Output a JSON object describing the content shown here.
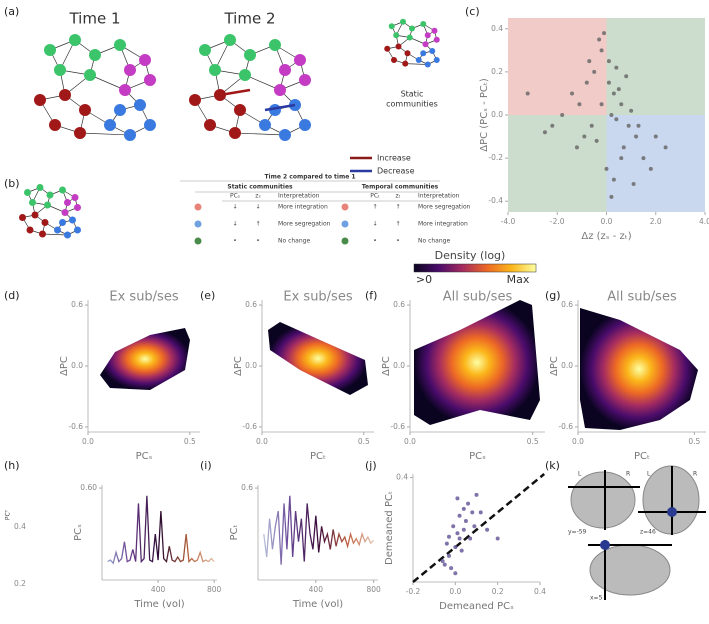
{
  "panel_labels": [
    "(a)",
    "(b)",
    "(c)",
    "(d)",
    "(e)",
    "(f)",
    "(g)",
    "(h)",
    "(i)",
    "(j)",
    "(k)"
  ],
  "panel_a": {
    "time1": "Time 1",
    "time2": "Time 2",
    "static": "Static",
    "communities": "communities",
    "increase": "Increase",
    "decrease": "Decrease",
    "increase_color": "#8b1a1a",
    "decrease_color": "#2a3aa0"
  },
  "panel_b": {
    "title": "Time 2 compared to time 1",
    "static_header": "Static communities",
    "temporal_header": "Temporal communities",
    "columns": [
      "PCₛ",
      "zₛ",
      "Interpretation",
      "PCₜ",
      "zₜ",
      "Interpretation"
    ],
    "row_colors": [
      "#e8837a",
      "#6fa0e0",
      "#4a8a4a"
    ],
    "rows": [
      [
        "↓",
        "↓",
        "More integration",
        "↑",
        "↑",
        "More segregation"
      ],
      [
        "↓",
        "↑",
        "More segregation",
        "↓",
        "↑",
        "More integration"
      ],
      [
        "•",
        "•",
        "No change",
        "•",
        "•",
        "No change"
      ]
    ]
  },
  "colorbar": {
    "title": "Density (log)",
    "min_label": ">0",
    "max_label": "Max",
    "colormap": [
      "#0a0420",
      "#4a0c6b",
      "#a52c60",
      "#ed6925",
      "#fbb61a",
      "#fcffa4"
    ]
  },
  "panel_k": {
    "labels": [
      "L",
      "R",
      "L",
      "R"
    ],
    "slices": [
      "y=-59",
      "z=46",
      "x=5"
    ]
  },
  "stray": {
    "label": "PCᵀ",
    "ticks": [
      "0.4",
      "0.2"
    ]
  },
  "chart_data": [
    {
      "type": "scatter",
      "xlabel": "Δz (zₛ - zₜ)",
      "ylabel": "ΔPC (PCₛ - PCₜ)",
      "xlim": [
        -4,
        4
      ],
      "ylim": [
        -0.45,
        0.45
      ],
      "xticks": [
        {
          "value": -4,
          "label": "-4.0"
        },
        {
          "value": -2,
          "label": "-2.0"
        },
        {
          "value": 0,
          "label": "0.0"
        },
        {
          "value": 2,
          "label": "2.0"
        },
        {
          "value": 4,
          "label": "4.0"
        }
      ],
      "yticks": [
        0.4,
        0.2,
        {
          "value": 0,
          "label": "0.0"
        },
        -0.2,
        -0.4
      ],
      "color": "#6a6a6a",
      "quadrant_colors": [
        "#f0cbc8",
        "#cdddcd",
        "#c9d8ef"
      ],
      "x": [
        -0.2,
        0.1,
        0.3,
        -0.5,
        0.6,
        -0.8,
        0.9,
        1.2,
        -1.1,
        0.4,
        -0.3,
        0.2,
        0.7,
        -0.6,
        1.5,
        -1.4,
        0.0,
        0.5,
        -0.9,
        1.0,
        -2.2,
        -2.5,
        -1.8,
        2.0,
        1.8,
        -0.1,
        0.3,
        -0.4,
        0.8,
        1.3,
        -0.7,
        0.2,
        -3.2,
        2.4,
        0.6,
        -1.2,
        0.1,
        -0.2,
        1.1,
        0.4
      ],
      "y": [
        0.3,
        0.25,
        0.1,
        0.2,
        0.05,
        0.15,
        -0.05,
        -0.1,
        0.05,
        -0.02,
        0.35,
        0.0,
        -0.15,
        -0.05,
        -0.2,
        0.1,
        -0.25,
        0.12,
        -0.1,
        0.02,
        -0.05,
        -0.08,
        0.0,
        -0.1,
        -0.25,
        0.38,
        -0.3,
        -0.12,
        0.18,
        -0.05,
        0.25,
        -0.38,
        0.1,
        -0.15,
        -0.2,
        -0.15,
        0.15,
        0.05,
        -0.32,
        0.22
      ]
    },
    {
      "type": "density",
      "title": "Ex sub/ses",
      "xlabel": "PCₛ",
      "ylabel": "ΔPC",
      "xlim": [
        0,
        0.55
      ],
      "ylim": [
        -0.65,
        0.65
      ],
      "xticks": [
        {
          "value": 0,
          "label": "0.0"
        },
        0.5
      ],
      "yticks": [
        0.6,
        {
          "value": 0,
          "label": "0.0"
        },
        -0.6
      ]
    },
    {
      "type": "density",
      "title": "Ex sub/ses",
      "xlabel": "PCₜ",
      "ylabel": "ΔPC",
      "xlim": [
        0,
        0.55
      ],
      "ylim": [
        -0.65,
        0.65
      ],
      "xticks": [
        {
          "value": 0,
          "label": "0.0"
        },
        0.5
      ],
      "yticks": [
        0.6,
        {
          "value": 0,
          "label": "0.0"
        },
        -0.6
      ]
    },
    {
      "type": "density",
      "title": "All sub/ses",
      "xlabel": "PCₛ",
      "ylabel": "ΔPC",
      "xlim": [
        0,
        0.55
      ],
      "ylim": [
        -0.65,
        0.65
      ],
      "xticks": [
        {
          "value": 0,
          "label": "0.0"
        },
        0.5
      ],
      "yticks": [
        0.6,
        {
          "value": 0,
          "label": "0.0"
        },
        -0.6
      ]
    },
    {
      "type": "density",
      "title": "All sub/ses",
      "xlabel": "PCₜ",
      "ylabel": "ΔPC",
      "xlim": [
        0,
        0.55
      ],
      "ylim": [
        -0.65,
        0.65
      ],
      "xticks": [
        {
          "value": 0,
          "label": "0.0"
        },
        0.5
      ],
      "yticks": [
        0.6,
        {
          "value": 0,
          "label": "0.0"
        },
        -0.6
      ]
    },
    {
      "type": "line",
      "xlabel": "Time (vol)",
      "ylabel": "PCₛ",
      "xlim": [
        0,
        820
      ],
      "ylim": [
        0,
        0.62
      ],
      "xticks": [
        400,
        800
      ],
      "yticks": [
        {
          "value": 0.6,
          "label": "0.60"
        }
      ],
      "colors": [
        "#9ab8dc",
        "#6a3a8a",
        "#2a0a30",
        "#b0603a",
        "#e8c8b0"
      ],
      "x": [
        40,
        60,
        80,
        100,
        120,
        140,
        160,
        180,
        200,
        220,
        240,
        260,
        280,
        300,
        320,
        340,
        360,
        380,
        400,
        420,
        440,
        460,
        480,
        500,
        520,
        540,
        560,
        580,
        600,
        620,
        640,
        660,
        680,
        700,
        720,
        740,
        760,
        780,
        800
      ],
      "values": [
        0.12,
        0.13,
        0.11,
        0.18,
        0.12,
        0.14,
        0.25,
        0.12,
        0.13,
        0.2,
        0.12,
        0.5,
        0.12,
        0.14,
        0.55,
        0.13,
        0.12,
        0.3,
        0.13,
        0.45,
        0.14,
        0.12,
        0.22,
        0.13,
        0.12,
        0.15,
        0.12,
        0.13,
        0.3,
        0.12,
        0.14,
        0.12,
        0.13,
        0.18,
        0.12,
        0.13,
        0.12,
        0.14,
        0.12
      ]
    },
    {
      "type": "line",
      "xlabel": "Time (vol)",
      "ylabel": "PCₜ",
      "xlim": [
        0,
        830
      ],
      "ylim": [
        0,
        0.62
      ],
      "xticks": [
        400,
        800
      ],
      "yticks": [
        0.6
      ],
      "colors": [
        "#c8dce8",
        "#6a4a9a",
        "#3a0a3a",
        "#c06040",
        "#ecd8c8"
      ],
      "x": [
        40,
        60,
        80,
        100,
        120,
        140,
        160,
        180,
        200,
        220,
        240,
        260,
        280,
        300,
        320,
        340,
        360,
        380,
        400,
        420,
        440,
        460,
        480,
        500,
        520,
        540,
        560,
        580,
        600,
        620,
        640,
        660,
        680,
        700,
        720,
        740,
        760,
        780,
        800
      ],
      "values": [
        0.3,
        0.15,
        0.4,
        0.2,
        0.35,
        0.45,
        0.1,
        0.5,
        0.2,
        0.55,
        0.15,
        0.45,
        0.25,
        0.4,
        0.12,
        0.5,
        0.3,
        0.2,
        0.42,
        0.18,
        0.35,
        0.25,
        0.3,
        0.2,
        0.33,
        0.22,
        0.3,
        0.25,
        0.28,
        0.22,
        0.3,
        0.24,
        0.27,
        0.23,
        0.3,
        0.25,
        0.28,
        0.24,
        0.26
      ]
    },
    {
      "type": "scatter",
      "xlabel": "Demeaned PCₛ",
      "ylabel": "Demeaned PCₜ",
      "xlim": [
        -0.2,
        0.4
      ],
      "ylim": [
        -0.2,
        0.42
      ],
      "xticks": [
        -0.2,
        {
          "value": 0,
          "label": "0.0"
        },
        0.2,
        0.4
      ],
      "yticks": [
        0.4
      ],
      "color": "#6a5a9a",
      "identity": true,
      "x": [
        -0.05,
        -0.03,
        0.0,
        0.02,
        0.04,
        -0.02,
        0.01,
        0.05,
        0.08,
        -0.04,
        0.03,
        0.06,
        0.1,
        0.12,
        -0.01,
        0.0,
        0.02,
        0.15,
        0.07,
        -0.06,
        0.04,
        0.09,
        0.2,
        0.01,
        -0.03
      ],
      "y": [
        -0.1,
        -0.05,
        0.0,
        0.05,
        0.1,
        -0.12,
        0.08,
        0.15,
        0.2,
        0.02,
        -0.02,
        0.25,
        0.3,
        0.2,
        0.12,
        -0.15,
        0.18,
        0.1,
        0.05,
        -0.08,
        0.22,
        0.12,
        0.05,
        0.28,
        0.06
      ]
    }
  ]
}
